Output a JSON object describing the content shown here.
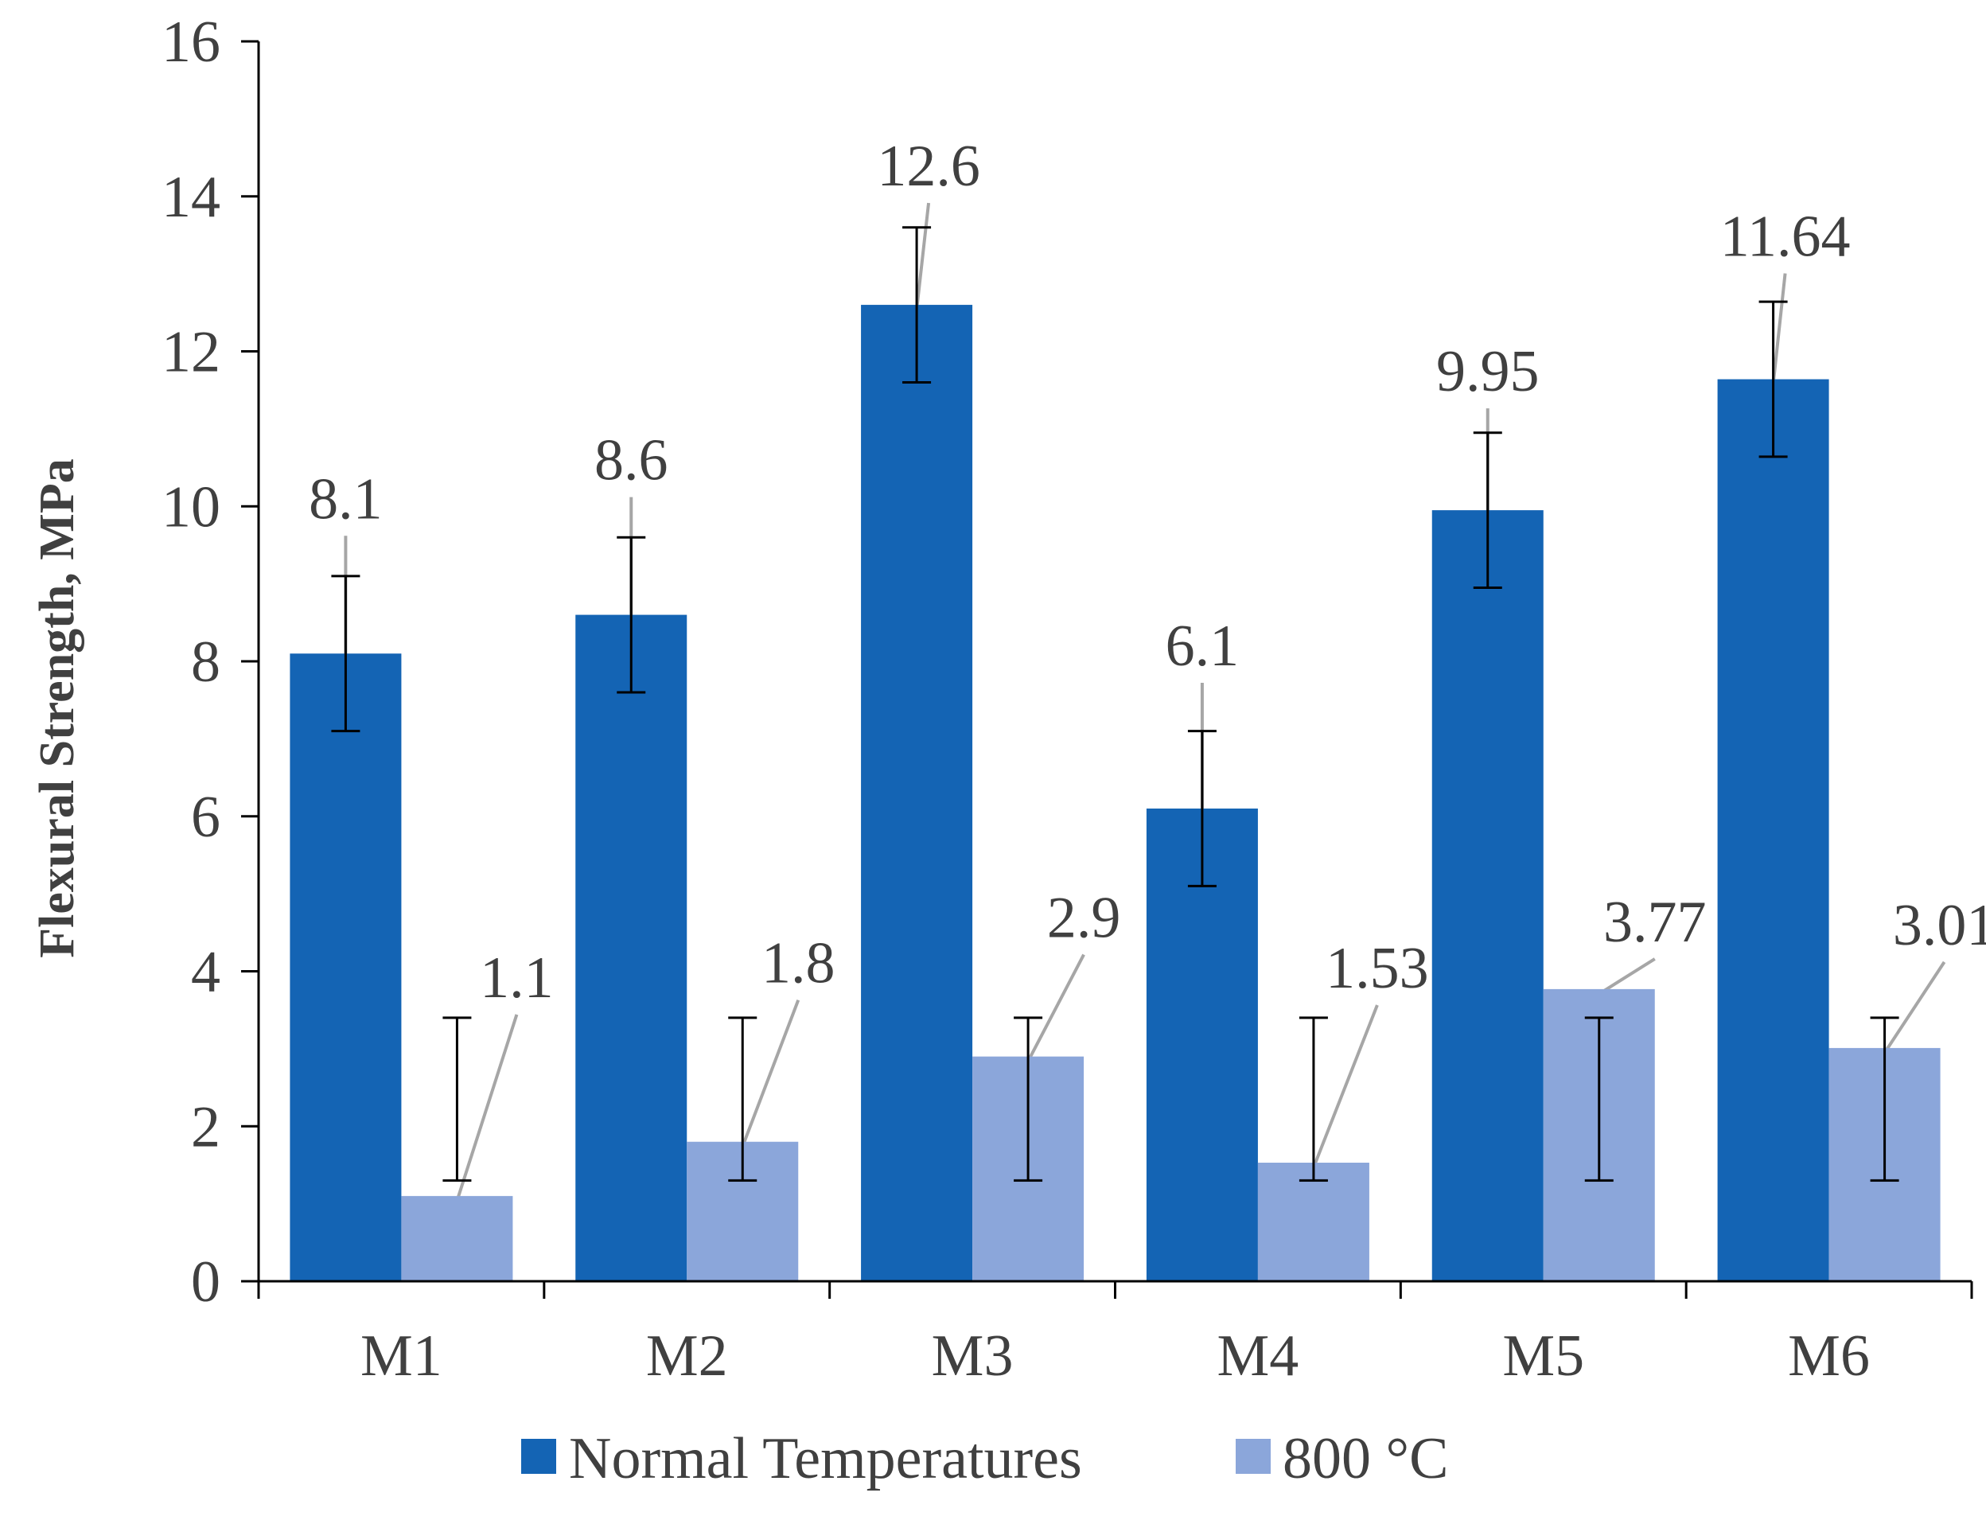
{
  "chart_data": {
    "type": "bar",
    "title": "",
    "xlabel": "",
    "ylabel": "Flexural Strength, MPa",
    "ylim": [
      0,
      16
    ],
    "yticks": [
      0,
      2,
      4,
      6,
      8,
      10,
      12,
      14,
      16
    ],
    "grid": false,
    "legend_position": "bottom",
    "categories": [
      "M1",
      "M2",
      "M3",
      "M4",
      "M5",
      "M6"
    ],
    "series": [
      {
        "name": "Normal Temperatures",
        "color": "#1464B4",
        "values": [
          8.1,
          8.6,
          12.6,
          6.1,
          9.95,
          11.64
        ],
        "labels": [
          "8.1",
          "8.6",
          "12.6",
          "6.1",
          "9.95",
          "11.64"
        ],
        "error_low": [
          7.1,
          7.6,
          11.6,
          5.1,
          8.95,
          10.64
        ],
        "error_high": [
          9.1,
          9.6,
          13.6,
          7.1,
          10.95,
          12.64
        ]
      },
      {
        "name": "800 °C",
        "color": "#8BA6DA",
        "values": [
          1.1,
          1.8,
          2.9,
          1.53,
          3.77,
          3.01
        ],
        "labels": [
          "1.1",
          "1.8",
          "2.9",
          "1.53",
          "3.77",
          "3.01"
        ],
        "error_low": [
          1.3,
          1.3,
          1.3,
          1.3,
          1.3,
          1.3
        ],
        "error_high": [
          3.4,
          3.4,
          3.4,
          3.4,
          3.4,
          3.4
        ]
      }
    ]
  }
}
